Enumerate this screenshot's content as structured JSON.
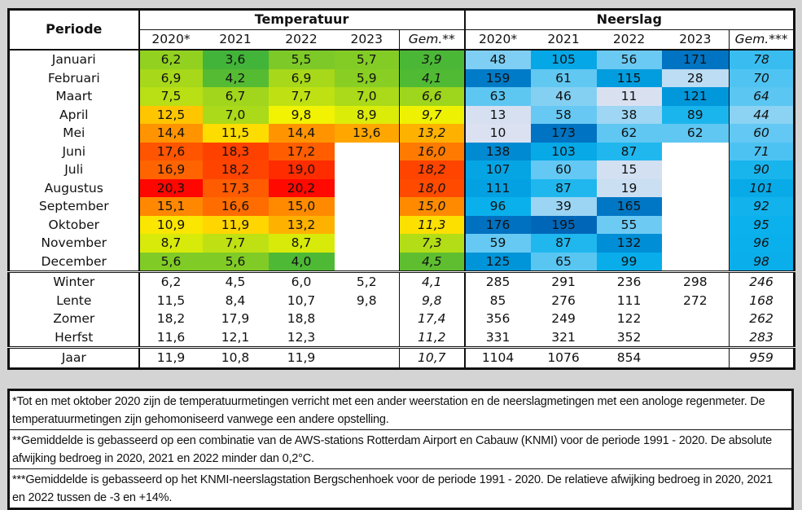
{
  "table": {
    "period_header": "Periode",
    "temp_group": "Temperatuur",
    "precip_group": "Neerslag",
    "temp_columns": [
      "2020*",
      "2021",
      "2022",
      "2023",
      "Gem.**"
    ],
    "precip_columns": [
      "2020*",
      "2021",
      "2022",
      "2023",
      "Gem.***"
    ],
    "months": [
      {
        "label": "Januari",
        "temp": [
          "6,2",
          "3,6",
          "5,5",
          "5,7",
          "3,9"
        ],
        "precip": [
          "48",
          "105",
          "56",
          "171",
          "78"
        ]
      },
      {
        "label": "Februari",
        "temp": [
          "6,9",
          "4,2",
          "6,9",
          "5,9",
          "4,1"
        ],
        "precip": [
          "159",
          "61",
          "115",
          "28",
          "70"
        ]
      },
      {
        "label": "Maart",
        "temp": [
          "7,5",
          "6,7",
          "7,7",
          "7,0",
          "6,6"
        ],
        "precip": [
          "63",
          "46",
          "11",
          "121",
          "64"
        ]
      },
      {
        "label": "April",
        "temp": [
          "12,5",
          "7,0",
          "9,8",
          "8,9",
          "9,7"
        ],
        "precip": [
          "13",
          "58",
          "38",
          "89",
          "44"
        ]
      },
      {
        "label": "Mei",
        "temp": [
          "14,4",
          "11,5",
          "14,4",
          "13,6",
          "13,2"
        ],
        "precip": [
          "10",
          "173",
          "62",
          "62",
          "60"
        ]
      },
      {
        "label": "Juni",
        "temp": [
          "17,6",
          "18,3",
          "17,2",
          "",
          "16,0"
        ],
        "precip": [
          "138",
          "103",
          "87",
          "",
          "71"
        ]
      },
      {
        "label": "Juli",
        "temp": [
          "16,9",
          "18,2",
          "19,0",
          "",
          "18,2"
        ],
        "precip": [
          "107",
          "60",
          "15",
          "",
          "90"
        ]
      },
      {
        "label": "Augustus",
        "temp": [
          "20,3",
          "17,3",
          "20,2",
          "",
          "18,0"
        ],
        "precip": [
          "111",
          "87",
          "19",
          "",
          "101"
        ]
      },
      {
        "label": "September",
        "temp": [
          "15,1",
          "16,6",
          "15,0",
          "",
          "15,0"
        ],
        "precip": [
          "96",
          "39",
          "165",
          "",
          "92"
        ]
      },
      {
        "label": "Oktober",
        "temp": [
          "10,9",
          "11,9",
          "13,2",
          "",
          "11,3"
        ],
        "precip": [
          "176",
          "195",
          "55",
          "",
          "95"
        ]
      },
      {
        "label": "November",
        "temp": [
          "8,7",
          "7,7",
          "8,7",
          "",
          "7,3"
        ],
        "precip": [
          "59",
          "87",
          "132",
          "",
          "96"
        ]
      },
      {
        "label": "December",
        "temp": [
          "5,6",
          "5,6",
          "4,0",
          "",
          "4,5"
        ],
        "precip": [
          "125",
          "65",
          "99",
          "",
          "98"
        ]
      }
    ],
    "seasons": [
      {
        "label": "Winter",
        "temp": [
          "6,2",
          "4,5",
          "6,0",
          "5,2",
          "4,1"
        ],
        "precip": [
          "285",
          "291",
          "236",
          "298",
          "246"
        ]
      },
      {
        "label": "Lente",
        "temp": [
          "11,5",
          "8,4",
          "10,7",
          "9,8",
          "9,8"
        ],
        "precip": [
          "85",
          "276",
          "111",
          "272",
          "168"
        ]
      },
      {
        "label": "Zomer",
        "temp": [
          "18,2",
          "17,9",
          "18,8",
          "",
          "17,4"
        ],
        "precip": [
          "356",
          "249",
          "122",
          "",
          "262"
        ]
      },
      {
        "label": "Herfst",
        "temp": [
          "11,6",
          "12,1",
          "12,3",
          "",
          "11,2"
        ],
        "precip": [
          "331",
          "321",
          "352",
          "",
          "283"
        ]
      }
    ],
    "year": {
      "label": "Jaar",
      "temp": [
        "11,9",
        "10,8",
        "11,9",
        "",
        "10,7"
      ],
      "precip": [
        "1104",
        "1076",
        "854",
        "",
        "959"
      ]
    }
  },
  "heat_colors": {
    "temp_stops": [
      {
        "v": 3.5,
        "color": "#3fb33a"
      },
      {
        "v": 6.0,
        "color": "#8ccf22"
      },
      {
        "v": 8.0,
        "color": "#c8e410"
      },
      {
        "v": 10.0,
        "color": "#f5f500"
      },
      {
        "v": 12.0,
        "color": "#ffd400"
      },
      {
        "v": 14.0,
        "color": "#ff9a00"
      },
      {
        "v": 16.0,
        "color": "#ff7a00"
      },
      {
        "v": 18.0,
        "color": "#ff4a00"
      },
      {
        "v": 20.5,
        "color": "#ff0000"
      }
    ],
    "precip_stops": [
      {
        "v": 10,
        "color": "#dbe1f1"
      },
      {
        "v": 30,
        "color": "#b8dcf3"
      },
      {
        "v": 50,
        "color": "#77cdf3"
      },
      {
        "v": 70,
        "color": "#4fc3f2"
      },
      {
        "v": 95,
        "color": "#0ab1ec"
      },
      {
        "v": 120,
        "color": "#0098dc"
      },
      {
        "v": 150,
        "color": "#0080cc"
      },
      {
        "v": 195,
        "color": "#0066b8"
      }
    ]
  },
  "notes": [
    "*Tot en met oktober 2020 zijn de temperatuurmetingen verricht met een ander weerstation en de neerslagmetingen met een anologe regenmeter. De temperatuurmetingen zijn gehomoniseerd vanwege een andere opstelling.",
    "**Gemiddelde is gebasseerd op een combinatie van de AWS-stations Rotterdam Airport en Cabauw (KNMI) voor de periode 1991 - 2020. De absolute afwijking bedroeg in 2020, 2021 en 2022 minder dan 0,2°C.",
    "***Gemiddelde is gebasseerd op het KNMI-neerslagstation Bergschenhoek voor de periode 1991 - 2020. De relatieve afwijking bedroeg in 2020, 2021 en 2022 tussen de -3 en +14%."
  ]
}
